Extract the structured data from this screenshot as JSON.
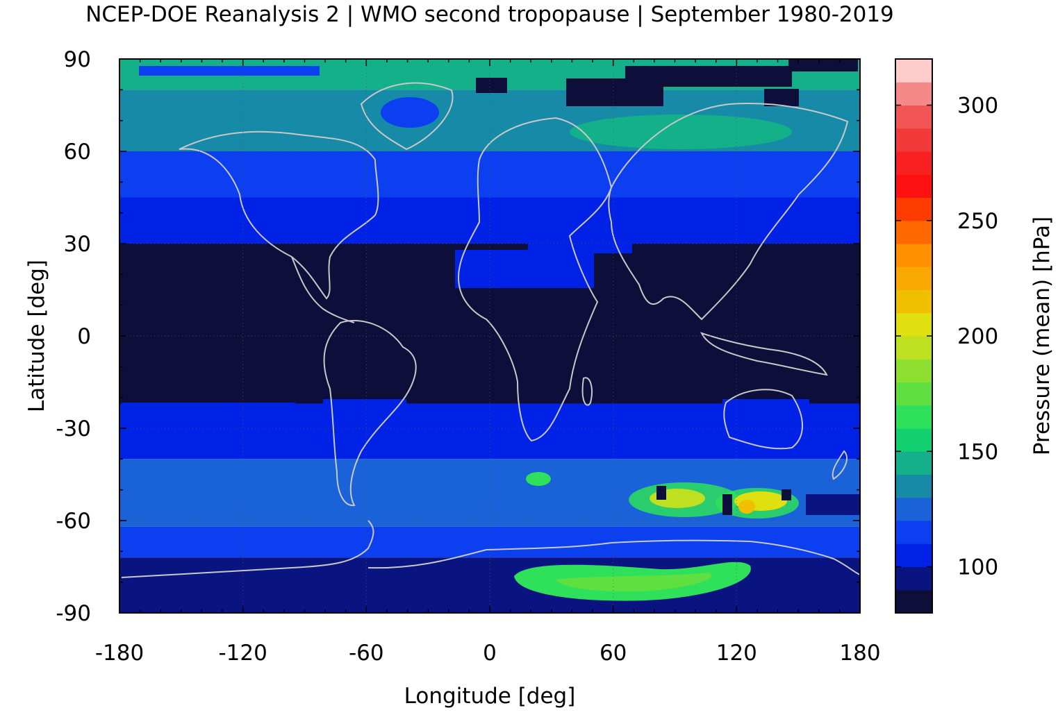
{
  "title": "NCEP-DOE Reanalysis 2 | WMO second tropopause | September 1980-2019",
  "chart_data": {
    "type": "heatmap",
    "xlabel": "Longitude [deg]",
    "ylabel": "Latitude [deg]",
    "xlim": [
      -180,
      180
    ],
    "ylim": [
      -90,
      90
    ],
    "xticks": [
      "-180",
      "-120",
      "-60",
      "0",
      "60",
      "120",
      "180"
    ],
    "yticks": [
      "90",
      "60",
      "30",
      "0",
      "-30",
      "-60",
      "-90"
    ],
    "grid": true,
    "overlay": "coastlines",
    "colorbar": {
      "label": "Pressure (mean) [hPa]",
      "range": [
        80,
        320
      ],
      "ticks": [
        "100",
        "150",
        "200",
        "250",
        "300"
      ],
      "colors": [
        "#0d0f3a",
        "#0a1480",
        "#0022e6",
        "#0b3ff0",
        "#1a62d8",
        "#178aa8",
        "#14b08a",
        "#12cf70",
        "#2ee05a",
        "#5fe040",
        "#8ee030",
        "#bfe020",
        "#e0e010",
        "#f0c000",
        "#f8a800",
        "#ff9000",
        "#ff6800",
        "#ff3c00",
        "#ff1010",
        "#f82020",
        "#f23a3a",
        "#f25555",
        "#f58888",
        "#ffcccc"
      ]
    },
    "field_bands": [
      {
        "lat": [
          80,
          90
        ],
        "value": 140
      },
      {
        "lat": [
          60,
          80
        ],
        "value": 135
      },
      {
        "lat": [
          45,
          60
        ],
        "value": 112
      },
      {
        "lat": [
          30,
          45
        ],
        "value": 102
      },
      {
        "lat": [
          -22,
          30
        ],
        "value": 88
      },
      {
        "lat": [
          -40,
          -22
        ],
        "value": 105
      },
      {
        "lat": [
          -62,
          -40
        ],
        "value": 125
      },
      {
        "lat": [
          -72,
          -62
        ],
        "value": 115
      },
      {
        "lat": [
          -90,
          -72
        ],
        "value": 98
      }
    ]
  }
}
